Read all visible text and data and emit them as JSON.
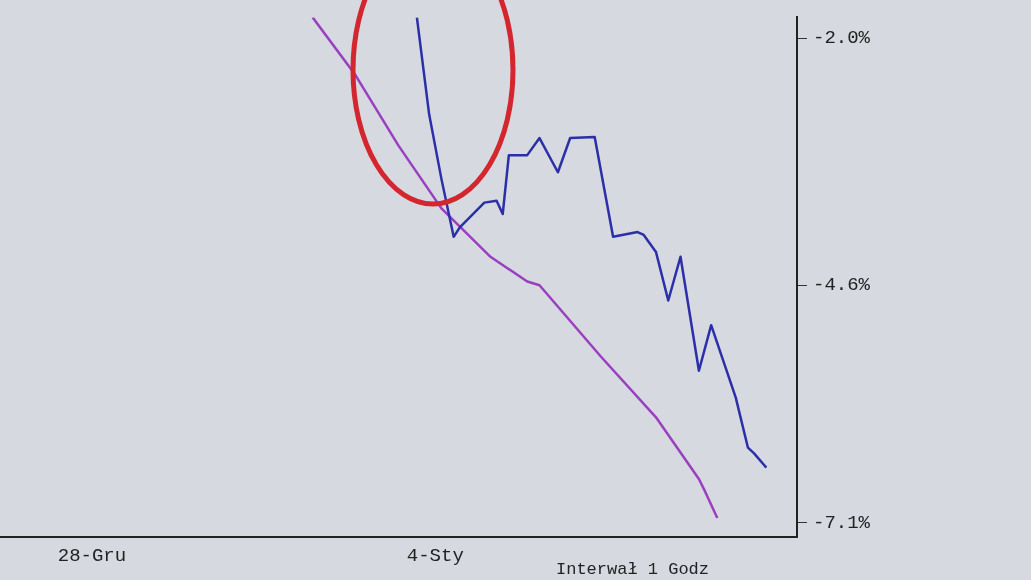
{
  "chart_data": {
    "type": "line",
    "annotations": [
      "Interwał 1 Godz"
    ],
    "categories": [
      null,
      null,
      null,
      null,
      null,
      null,
      null,
      null,
      null,
      null,
      null,
      null,
      null,
      null,
      null,
      "28-Gru",
      null,
      null,
      null,
      null,
      null,
      null,
      null,
      null,
      null,
      null,
      null,
      null,
      null,
      null,
      null,
      null,
      null,
      null,
      null,
      null,
      null,
      null,
      null,
      null,
      null,
      null,
      null,
      null,
      null,
      null,
      null,
      null,
      null,
      null,
      null,
      null,
      null,
      null,
      null,
      null,
      null,
      null,
      null,
      null,
      null,
      null,
      null,
      null,
      null,
      null,
      null,
      null,
      null,
      null,
      null,
      "4-Sty",
      null,
      null,
      null,
      null,
      null,
      null,
      null,
      null,
      null,
      null,
      null,
      null,
      null,
      null,
      null,
      null,
      null,
      null,
      null,
      null,
      null,
      null,
      null,
      null,
      null,
      null,
      null,
      null,
      null,
      null,
      null,
      null,
      null,
      null,
      null,
      null,
      null,
      null,
      null,
      null,
      null,
      null,
      null,
      null,
      null,
      null,
      null,
      null,
      null,
      null,
      null,
      null,
      null,
      null,
      null,
      null,
      null,
      null,
      null
    ],
    "ylim": [
      -7.25,
      -1.78
    ],
    "yticks": [
      {
        "value": -2.0,
        "label": "-2.0%"
      },
      {
        "value": -4.6,
        "label": "-4.6%"
      },
      {
        "value": -7.1,
        "label": "-7.1%"
      }
    ],
    "grid": false,
    "legend": false,
    "marker": "none",
    "line_style": "solid",
    "series": [
      {
        "color": "#2b2fa8",
        "values": [
          null,
          null,
          null,
          null,
          null,
          null,
          null,
          null,
          null,
          null,
          null,
          null,
          null,
          null,
          null,
          null,
          null,
          null,
          null,
          null,
          null,
          null,
          null,
          null,
          null,
          null,
          null,
          null,
          null,
          null,
          null,
          null,
          null,
          null,
          null,
          null,
          null,
          null,
          null,
          null,
          null,
          null,
          null,
          null,
          null,
          null,
          null,
          null,
          null,
          null,
          null,
          null,
          null,
          null,
          null,
          null,
          null,
          null,
          null,
          null,
          null,
          null,
          null,
          null,
          null,
          null,
          null,
          null,
          -1.78,
          null,
          -2.8,
          null,
          -3.48,
          null,
          -4.09,
          -3.99,
          null,
          null,
          null,
          -3.73,
          null,
          -3.71,
          -3.85,
          -3.23,
          null,
          null,
          -3.23,
          null,
          -3.05,
          null,
          null,
          -3.41,
          null,
          -3.05,
          null,
          null,
          null,
          -3.04,
          null,
          null,
          -4.09,
          null,
          null,
          null,
          -4.04,
          -4.07,
          null,
          -4.25,
          null,
          -4.76,
          null,
          -4.3,
          null,
          null,
          -5.5,
          null,
          -5.02,
          null,
          null,
          null,
          -5.78,
          null,
          -6.31,
          -6.37,
          null,
          -6.52,
          null,
          null,
          null,
          null,
          null
        ]
      },
      {
        "color": "#9a3fc0",
        "values": [
          null,
          null,
          null,
          null,
          null,
          null,
          null,
          null,
          null,
          null,
          null,
          null,
          null,
          null,
          null,
          null,
          null,
          null,
          null,
          null,
          null,
          null,
          null,
          null,
          null,
          null,
          null,
          null,
          null,
          null,
          null,
          null,
          null,
          null,
          null,
          null,
          null,
          null,
          null,
          null,
          null,
          null,
          null,
          null,
          null,
          null,
          null,
          null,
          null,
          null,
          null,
          -1.78,
          null,
          null,
          null,
          null,
          null,
          null,
          -2.39,
          null,
          null,
          null,
          null,
          null,
          null,
          -3.13,
          null,
          null,
          null,
          null,
          null,
          null,
          -3.79,
          null,
          null,
          null,
          null,
          null,
          null,
          null,
          -4.3,
          null,
          null,
          null,
          null,
          null,
          -4.56,
          null,
          -4.6,
          null,
          null,
          null,
          null,
          null,
          null,
          null,
          null,
          null,
          -5.35,
          null,
          null,
          null,
          null,
          null,
          null,
          null,
          null,
          -5.99,
          null,
          null,
          null,
          null,
          null,
          null,
          -6.64,
          -6.77,
          null,
          -7.05,
          null,
          null,
          null,
          null,
          null,
          null,
          null,
          null,
          null,
          null,
          null,
          null,
          null
        ]
      }
    ]
  }
}
